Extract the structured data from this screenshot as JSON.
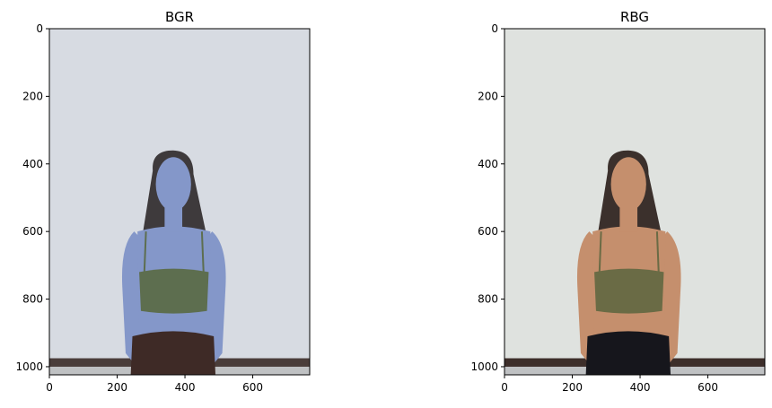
{
  "figure": {
    "background": "#ffffff"
  },
  "chart_data": [
    {
      "type": "image",
      "title": "BGR",
      "xlim": [
        0,
        768
      ],
      "ylim": [
        1024,
        0
      ],
      "xticks": [
        0,
        200,
        400,
        600
      ],
      "yticks": [
        0,
        200,
        400,
        600,
        800,
        1000
      ],
      "tint": {
        "wall": "#d7dbe2",
        "skin": "#8497c9",
        "top": "#5d6e4f",
        "pants": "#3e2a26",
        "hair": "#3e3a3c",
        "floor": "#4a3d3a"
      }
    },
    {
      "type": "image",
      "title": "RBG",
      "xlim": [
        0,
        768
      ],
      "ylim": [
        1024,
        0
      ],
      "xticks": [
        0,
        200,
        400,
        600
      ],
      "yticks": [
        0,
        200,
        400,
        600,
        800,
        1000
      ],
      "tint": {
        "wall": "#dfe2df",
        "skin": "#c58f6d",
        "top": "#6a6b45",
        "pants": "#16161c",
        "hair": "#3b302c",
        "floor": "#3d2e2a"
      }
    }
  ]
}
